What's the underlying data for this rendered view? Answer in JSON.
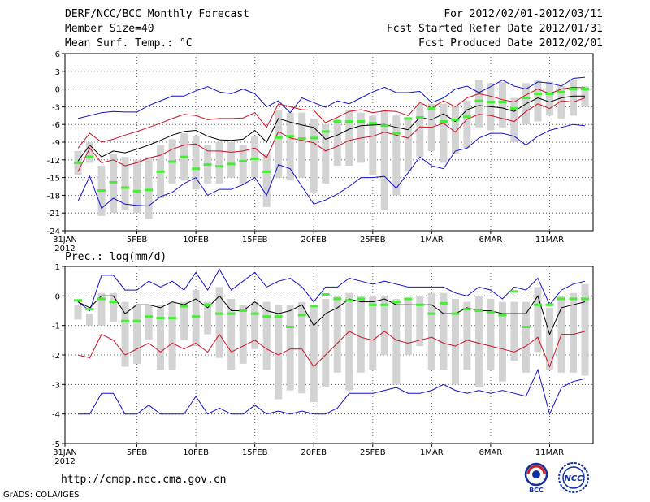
{
  "header": {
    "title": "DERF/NCC/BCC Monthly Forecast",
    "member_size": "Member Size=40",
    "variable": "Mean Surf. Temp.: °C",
    "period": "For 2012/02/01-2012/03/11",
    "fcst_started": "Fcst Started Refer Date 2012/01/31",
    "fcst_produced": "Fcst Produced Date 2012/02/01"
  },
  "footer": {
    "url": "http://cmdp.ncc.cma.gov.cn",
    "credit": "GrADS: COLA/IGES",
    "logo_left_text": "BCC",
    "logo_right_text": "NCC"
  },
  "colors": {
    "envelope": "#1010cc",
    "spread": "#cc1020",
    "mean": "#000000",
    "median": "#44ee33",
    "box": "#d3d3d3"
  },
  "chart_data": [
    {
      "type": "line",
      "title": "Mean Surf. Temp.: °C",
      "x_tick_labels": [
        "31JAN\n2012",
        "5FEB",
        "10FEB",
        "15FEB",
        "20FEB",
        "25FEB",
        "1MAR",
        "6MAR",
        "11MAR"
      ],
      "ylim": [
        -24,
        6
      ],
      "yticks": [
        -24,
        -21,
        -18,
        -15,
        -12,
        -9,
        -6,
        -3,
        0,
        3,
        6
      ],
      "grid": true,
      "series": [
        {
          "name": "max",
          "color": "#1010cc",
          "values": [
            -5.0,
            -4.5,
            -4.0,
            -3.8,
            -3.9,
            -3.9,
            -2.8,
            -2.0,
            -1.2,
            -1.2,
            -0.3,
            0.4,
            -0.5,
            -0.8,
            0.0,
            -0.8,
            -3.0,
            -2.0,
            -4.0,
            -1.5,
            -2.3,
            -3.1,
            -2.0,
            -2.5,
            -1.5,
            -0.5,
            0.3,
            -0.6,
            -0.6,
            -0.4,
            -2.3,
            -1.5,
            0.0,
            0.5,
            -0.6,
            0.4,
            1.5,
            0.5,
            0.0,
            1.2,
            1.0,
            0.5,
            1.8,
            2.0
          ]
        },
        {
          "name": "upper",
          "color": "#cc1020",
          "values": [
            -10.0,
            -7.5,
            -9.0,
            -8.5,
            -7.8,
            -7.2,
            -6.5,
            -5.8,
            -5.0,
            -4.3,
            -4.5,
            -5.2,
            -5.0,
            -5.0,
            -4.9,
            -4.0,
            -6.5,
            -2.5,
            -3.0,
            -3.5,
            -3.6,
            -5.7,
            -4.8,
            -3.8,
            -3.5,
            -4.0,
            -3.7,
            -3.8,
            -4.5,
            -2.3,
            -3.2,
            -2.0,
            -3.0,
            -1.5,
            -0.8,
            -1.2,
            -1.8,
            -2.2,
            -1.0,
            0.0,
            -0.8,
            0.0,
            0.3,
            0.2
          ]
        },
        {
          "name": "mean",
          "color": "#000000",
          "values": [
            -12.2,
            -9.5,
            -11.5,
            -10.5,
            -10.8,
            -10.2,
            -9.5,
            -8.7,
            -7.8,
            -7.2,
            -7.0,
            -8.0,
            -8.6,
            -8.7,
            -8.5,
            -7.0,
            -9.0,
            -5.0,
            -5.6,
            -6.1,
            -6.5,
            -8.5,
            -7.8,
            -6.8,
            -6.2,
            -6.1,
            -6.0,
            -6.5,
            -6.9,
            -4.8,
            -5.2,
            -4.2,
            -5.5,
            -3.5,
            -2.8,
            -3.0,
            -3.2,
            -3.8,
            -2.5,
            -1.5,
            -2.2,
            -1.5,
            -1.2,
            -1.2
          ]
        },
        {
          "name": "lower",
          "color": "#cc1020",
          "values": [
            -14.0,
            -10.0,
            -12.5,
            -12.0,
            -13.0,
            -12.5,
            -11.7,
            -11.2,
            -10.2,
            -9.5,
            -9.3,
            -10.5,
            -10.5,
            -10.7,
            -10.5,
            -10.0,
            -11.6,
            -7.2,
            -8.3,
            -8.7,
            -9.1,
            -10.5,
            -9.7,
            -8.7,
            -8.3,
            -8.0,
            -7.3,
            -7.8,
            -8.3,
            -6.4,
            -6.5,
            -5.8,
            -7.3,
            -5.1,
            -4.3,
            -4.5,
            -5.0,
            -5.5,
            -3.8,
            -2.5,
            -3.3,
            -2.0,
            -2.2,
            -1.5
          ]
        },
        {
          "name": "min",
          "color": "#1010cc",
          "values": [
            -19.0,
            -14.8,
            -20.2,
            -18.5,
            -19.5,
            -19.7,
            -19.8,
            -18.2,
            -17.5,
            -16.0,
            -15.0,
            -18.0,
            -17.0,
            -17.0,
            -16.2,
            -15.0,
            -18.0,
            -12.8,
            -13.5,
            -16.5,
            -19.5,
            -18.8,
            -17.8,
            -16.5,
            -15.0,
            -15.0,
            -14.8,
            -16.8,
            -14.2,
            -11.5,
            -13.0,
            -13.5,
            -10.5,
            -10.0,
            -8.3,
            -7.5,
            -7.5,
            -8.0,
            -9.5,
            -8.0,
            -7.0,
            -6.5,
            -6.0,
            -6.2
          ]
        },
        {
          "name": "median",
          "color": "#44ee33",
          "values": [
            -12.5,
            -11.5,
            -17.2,
            -15.8,
            -16.7,
            -17.3,
            -17.1,
            -14.0,
            -12.3,
            -11.5,
            -13.5,
            -12.8,
            -13.1,
            -12.7,
            -12.2,
            -11.8,
            -14.0,
            -8.2,
            -8.0,
            -8.4,
            -8.3,
            -7.2,
            -5.5,
            -5.5,
            -5.5,
            -5.8,
            -6.2,
            -7.5,
            -5.0,
            -4.8,
            -3.3,
            -5.5,
            -5.2,
            -4.7,
            -2.0,
            -2.2,
            -2.2,
            -3.3,
            -1.5,
            -0.8,
            -0.8,
            -0.5,
            0.0,
            0.0
          ]
        },
        {
          "name": "box_top",
          "color": "#d3d3d3",
          "values": [
            -10.5,
            -9.0,
            -13.0,
            -11.0,
            -11.5,
            -12.0,
            -11.5,
            -9.5,
            -8.5,
            -7.5,
            -8.0,
            -9.5,
            -9.0,
            -9.0,
            -9.5,
            -8.0,
            -11.0,
            -3.5,
            -4.0,
            -4.0,
            -5.0,
            -6.0,
            -5.0,
            -3.5,
            -4.0,
            -4.5,
            -3.5,
            -4.5,
            -5.0,
            -2.5,
            -2.5,
            -2.5,
            -3.0,
            -2.0,
            1.5,
            1.0,
            1.2,
            -1.5,
            1.0,
            1.5,
            1.2,
            0.5,
            1.5,
            0.5
          ]
        },
        {
          "name": "box_bottom",
          "color": "#d3d3d3",
          "values": [
            -14.5,
            -12.5,
            -21.5,
            -21.0,
            -20.5,
            -21.0,
            -22.0,
            -18.5,
            -16.0,
            -15.5,
            -17.0,
            -16.0,
            -16.0,
            -15.0,
            -16.0,
            -15.0,
            -20.0,
            -15.0,
            -15.5,
            -15.0,
            -17.5,
            -16.0,
            -13.0,
            -13.0,
            -12.5,
            -14.5,
            -20.5,
            -18.0,
            -14.0,
            -11.5,
            -10.5,
            -12.5,
            -11.0,
            -10.0,
            -6.5,
            -7.0,
            -6.5,
            -9.0,
            -6.0,
            -5.5,
            -4.5,
            -5.0,
            -4.5,
            -3.0
          ]
        }
      ]
    },
    {
      "type": "line",
      "title": "Prec.: log(mm/d)",
      "x_tick_labels": [
        "31JAN\n2012",
        "5FEB",
        "10FEB",
        "15FEB",
        "20FEB",
        "25FEB",
        "1MAR",
        "6MAR",
        "11MAR"
      ],
      "ylim": [
        -5,
        1
      ],
      "yticks": [
        -5,
        -4,
        -3,
        -2,
        -1,
        0,
        1
      ],
      "grid": true,
      "series": [
        {
          "name": "max",
          "color": "#1010cc",
          "values": [
            -0.2,
            -0.5,
            0.7,
            0.7,
            0.2,
            0.2,
            0.5,
            0.3,
            0.5,
            0.2,
            0.8,
            0.2,
            0.9,
            0.2,
            0.5,
            0.8,
            0.3,
            0.5,
            0.6,
            0.3,
            -0.2,
            0.3,
            0.3,
            0.6,
            0.5,
            0.4,
            0.5,
            0.4,
            0.3,
            0.3,
            0.3,
            0.3,
            0.1,
            0.0,
            0.3,
            0.2,
            -0.1,
            0.3,
            0.2,
            0.6,
            -0.3,
            0.2,
            0.4,
            0.5
          ]
        },
        {
          "name": "mean",
          "color": "#000000",
          "values": [
            -0.2,
            -0.4,
            0.0,
            0.0,
            -0.6,
            -0.3,
            -0.3,
            -0.4,
            -0.2,
            -0.3,
            -0.1,
            -0.4,
            0.0,
            -0.5,
            -0.5,
            -0.2,
            -0.5,
            -0.6,
            -0.5,
            -0.3,
            -1.0,
            -0.6,
            -0.4,
            -0.1,
            -0.2,
            -0.2,
            -0.1,
            -0.3,
            -0.3,
            -0.3,
            -0.3,
            -0.6,
            -0.6,
            -0.4,
            -0.5,
            -0.5,
            -0.6,
            -0.6,
            -0.6,
            0.0,
            -1.3,
            -0.4,
            -0.3,
            -0.2
          ]
        },
        {
          "name": "lower",
          "color": "#cc1020",
          "values": [
            -2.0,
            -2.1,
            -1.3,
            -1.5,
            -2.0,
            -1.8,
            -1.6,
            -1.9,
            -1.6,
            -1.8,
            -1.6,
            -1.9,
            -1.3,
            -1.9,
            -1.7,
            -1.5,
            -1.8,
            -2.0,
            -1.8,
            -1.8,
            -2.4,
            -2.0,
            -1.6,
            -1.2,
            -1.4,
            -1.5,
            -1.2,
            -1.5,
            -1.6,
            -1.5,
            -1.4,
            -1.6,
            -1.7,
            -1.5,
            -1.6,
            -1.7,
            -1.8,
            -1.9,
            -1.7,
            -1.4,
            -2.4,
            -1.3,
            -1.3,
            -1.2
          ]
        },
        {
          "name": "min",
          "color": "#1010cc",
          "values": [
            -4.0,
            -4.0,
            -3.3,
            -3.3,
            -4.0,
            -4.0,
            -3.7,
            -4.0,
            -4.0,
            -4.0,
            -3.4,
            -4.0,
            -3.8,
            -4.0,
            -4.0,
            -3.7,
            -4.0,
            -3.9,
            -4.0,
            -3.9,
            -4.0,
            -4.0,
            -3.8,
            -3.3,
            -3.3,
            -3.3,
            -3.2,
            -3.1,
            -3.3,
            -3.3,
            -3.2,
            -3.0,
            -3.2,
            -3.3,
            -3.2,
            -3.3,
            -3.2,
            -3.3,
            -3.4,
            -2.5,
            -4.0,
            -3.1,
            -2.9,
            -2.8
          ]
        },
        {
          "name": "median",
          "color": "#44ee33",
          "values": [
            -0.15,
            -0.45,
            -0.1,
            -0.2,
            -0.85,
            -0.85,
            -0.7,
            -0.75,
            -0.75,
            -0.35,
            -0.7,
            -0.3,
            -0.6,
            -0.6,
            -0.5,
            -0.6,
            -0.7,
            -0.7,
            -1.05,
            -0.65,
            -0.35,
            0.05,
            -0.1,
            -0.15,
            -0.1,
            -0.3,
            -0.3,
            -0.2,
            -0.1,
            -0.3,
            -0.6,
            -0.25,
            -0.6,
            -0.45,
            -0.5,
            -0.55,
            -0.65,
            0.15,
            -1.05,
            -0.3,
            -0.3,
            -0.1,
            -0.1,
            -0.1
          ]
        },
        {
          "name": "box_top",
          "color": "#d3d3d3",
          "values": [
            -0.3,
            -0.6,
            0.1,
            0.1,
            -0.2,
            -0.3,
            -0.3,
            -0.3,
            -0.2,
            -0.2,
            0.2,
            -0.2,
            0.3,
            -0.1,
            -0.3,
            -0.2,
            -0.2,
            -0.3,
            -0.3,
            -0.2,
            -0.4,
            -0.1,
            0.0,
            0.1,
            0.0,
            0.0,
            0.0,
            -0.1,
            -0.1,
            0.0,
            0.1,
            0.1,
            -0.1,
            -0.2,
            0.0,
            -0.1,
            -0.2,
            -0.2,
            -0.2,
            0.3,
            -0.4,
            0.0,
            0.1,
            0.4
          ]
        },
        {
          "name": "box_bottom",
          "color": "#d3d3d3",
          "values": [
            -0.8,
            -1.0,
            -1.0,
            -0.9,
            -2.4,
            -2.3,
            -1.5,
            -2.5,
            -2.5,
            -1.5,
            -1.7,
            -1.3,
            -2.1,
            -2.5,
            -2.3,
            -1.8,
            -2.5,
            -3.5,
            -3.2,
            -3.3,
            -3.6,
            -3.1,
            -2.6,
            -3.2,
            -2.6,
            -2.5,
            -2.0,
            -3.0,
            -2.0,
            -1.7,
            -2.5,
            -2.5,
            -3.0,
            -2.5,
            -3.1,
            -2.5,
            -2.9,
            -2.2,
            -2.6,
            -1.9,
            -2.5,
            -2.6,
            -2.6,
            -2.7
          ]
        }
      ]
    }
  ],
  "panel2_label": "Prec.: log(mm/d)"
}
